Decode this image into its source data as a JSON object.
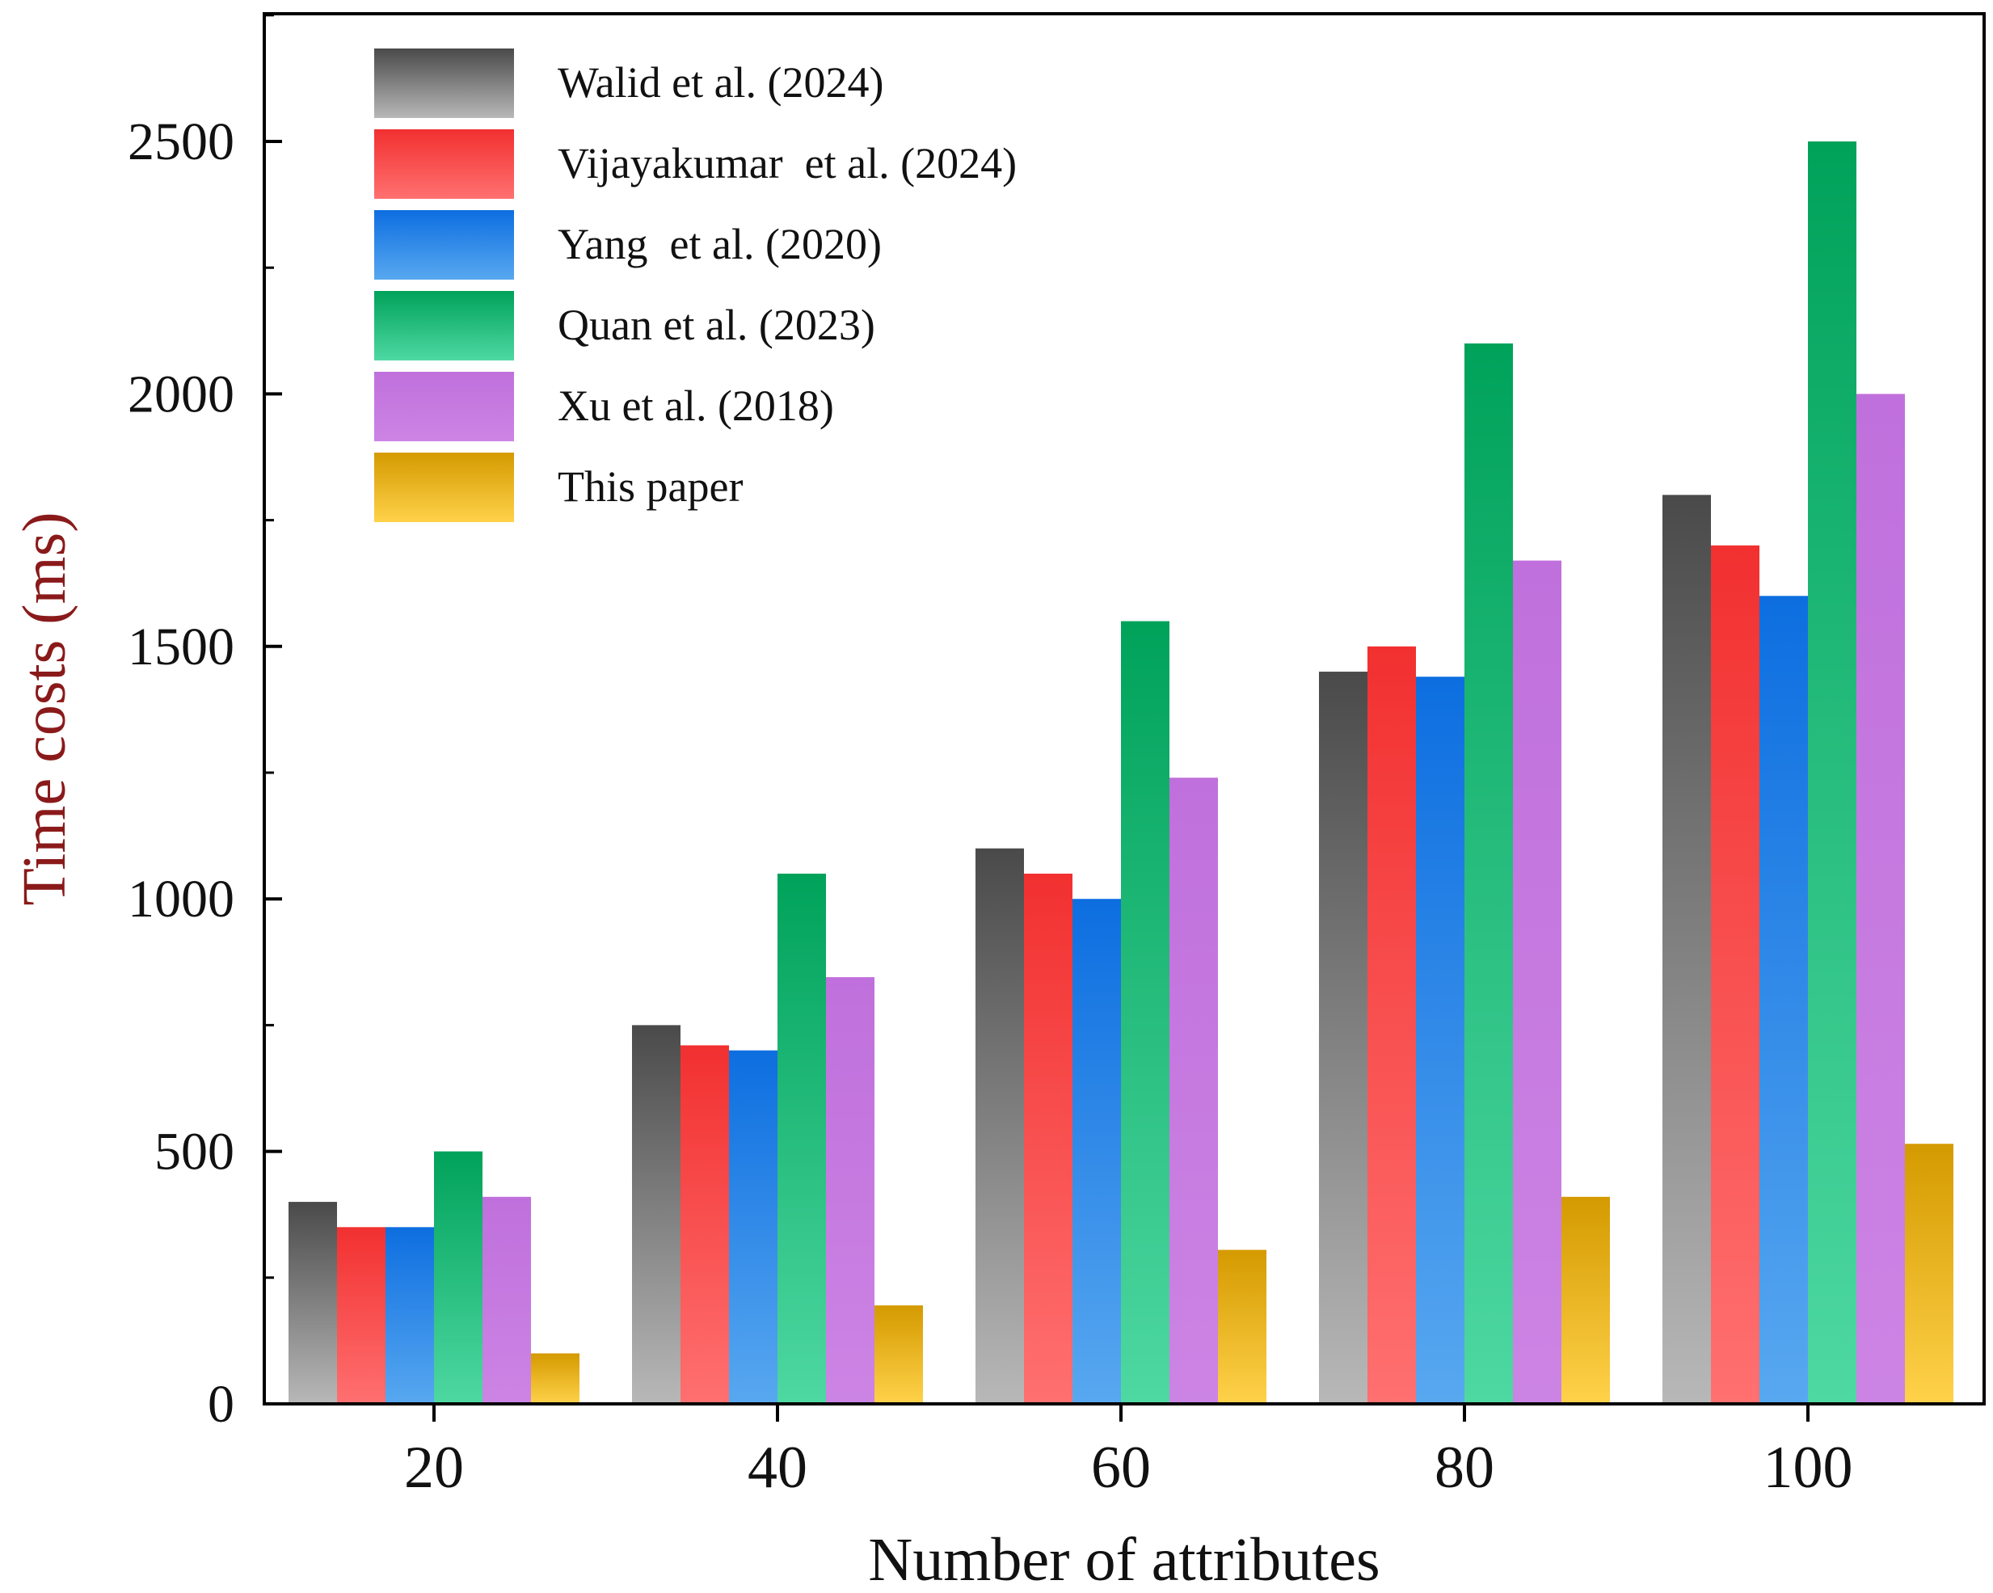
{
  "chart_data": {
    "type": "bar",
    "title": "",
    "xlabel": "Number of attributes",
    "ylabel": "Time costs (ms)",
    "ylim": [
      0,
      2750
    ],
    "yticks": [
      0,
      500,
      1000,
      1500,
      2000,
      2500
    ],
    "categories": [
      "20",
      "40",
      "60",
      "80",
      "100"
    ],
    "legend_position": "top-left",
    "series": [
      {
        "name": "Walid et al. (2024)",
        "values": [
          400,
          750,
          1100,
          1450,
          1800
        ],
        "color_top": "#4a4a4a",
        "color_bottom": "#b8b8b8"
      },
      {
        "name": "Vijayakumar  et al. (2024)",
        "values": [
          350,
          710,
          1050,
          1500,
          1700
        ],
        "color_top": "#f23030",
        "color_bottom": "#ff7070"
      },
      {
        "name": "Yang  et al. (2020)",
        "values": [
          350,
          700,
          1000,
          1440,
          1600
        ],
        "color_top": "#0d6ee0",
        "color_bottom": "#58a8f0"
      },
      {
        "name": "Quan et al. (2023)",
        "values": [
          500,
          1050,
          1550,
          2100,
          2500
        ],
        "color_top": "#00a25a",
        "color_bottom": "#4ed8a2"
      },
      {
        "name": "Xu et al. (2018)",
        "values": [
          410,
          845,
          1240,
          1670,
          2000
        ],
        "color_top": "#c070dc",
        "color_bottom": "#cc84e4"
      },
      {
        "name": "This paper",
        "values": [
          100,
          195,
          305,
          410,
          515
        ],
        "color_top": "#d49a00",
        "color_bottom": "#ffd24a"
      }
    ]
  },
  "colors": {
    "ylabel": "#8a1a1a",
    "axis": "#000000",
    "text": "#111111"
  }
}
